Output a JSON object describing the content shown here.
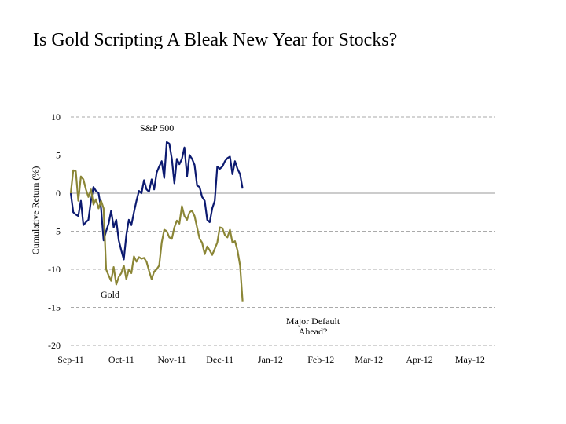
{
  "chart_data": {
    "type": "line",
    "title": "Is Gold Scripting A Bleak New Year for Stocks?",
    "ylabel": "Cumulative Return (%)",
    "annotation": [
      "Major Default",
      "Ahead?"
    ],
    "xlim": [
      0,
      168
    ],
    "xticks": [
      {
        "value": 0,
        "label": "Sep-11"
      },
      {
        "value": 20,
        "label": "Oct-11"
      },
      {
        "value": 40,
        "label": "Nov-11"
      },
      {
        "value": 59,
        "label": "Dec-11"
      },
      {
        "value": 79,
        "label": "Jan-12"
      },
      {
        "value": 99,
        "label": "Feb-12"
      },
      {
        "value": 118,
        "label": "Mar-12"
      },
      {
        "value": 138,
        "label": "Apr-12"
      },
      {
        "value": 158,
        "label": "May-12"
      }
    ],
    "ylim": [
      -20,
      10
    ],
    "yticks": [
      -20,
      -15,
      -10,
      -5,
      0,
      5,
      10
    ],
    "grid": true,
    "series": [
      {
        "name": "S&P 500",
        "color": "#0c1a70",
        "values": [
          0,
          -2.5,
          -2.8,
          -3.0,
          -1.0,
          -4.2,
          -3.8,
          -3.5,
          -1.0,
          0.8,
          0.3,
          0,
          -2,
          -6.2,
          -5,
          -4,
          -2.3,
          -4.5,
          -3.5,
          -6.2,
          -7.5,
          -8.7,
          -5.5,
          -3.5,
          -4.2,
          -2.5,
          -1,
          0.3,
          0,
          1.7,
          0.5,
          0.2,
          1.8,
          0.5,
          2.7,
          3.5,
          4.2,
          2,
          6.7,
          6.5,
          4.5,
          1.3,
          4.5,
          3.8,
          4.5,
          6,
          2.2,
          5,
          4.5,
          3.7,
          1,
          0.8,
          -0.5,
          -1,
          -3.5,
          -3.8,
          -2,
          -1,
          3.5,
          3.2,
          3.5,
          4.2,
          4.6,
          4.8,
          2.5,
          4.2,
          3.2,
          2.5,
          0.6
        ]
      },
      {
        "name": "Gold",
        "color": "#8b8636",
        "values": [
          0,
          3,
          2.9,
          -1.0,
          2.2,
          1.8,
          0.5,
          -0.5,
          0.5,
          -1.5,
          -0.8,
          -2,
          -1,
          -2,
          -10,
          -10.8,
          -11.5,
          -9.7,
          -12,
          -11,
          -10.5,
          -9.5,
          -11.3,
          -10,
          -10.5,
          -8.3,
          -9,
          -8.4,
          -8.6,
          -8.5,
          -9,
          -10.2,
          -11.3,
          -10.3,
          -10,
          -9.5,
          -6.5,
          -4.8,
          -5,
          -5.8,
          -6,
          -4.5,
          -3.6,
          -4,
          -1.7,
          -3,
          -3.5,
          -2.5,
          -2.3,
          -3,
          -4.5,
          -6,
          -6.5,
          -8,
          -7,
          -7.5,
          -8.1,
          -7.3,
          -6.5,
          -4.5,
          -4.6,
          -5.5,
          -5.8,
          -4.8,
          -6.5,
          -6.3,
          -7.5,
          -9.5,
          -14.2
        ]
      }
    ]
  }
}
